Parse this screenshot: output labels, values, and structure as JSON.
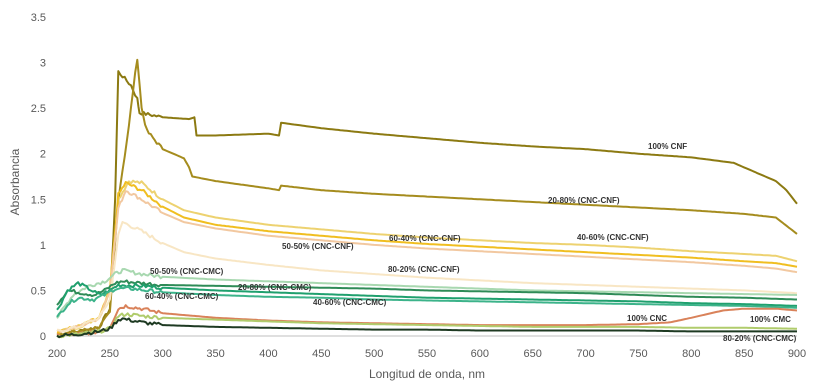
{
  "chart_data": {
    "type": "line",
    "xlabel": "Longitud de onda, nm",
    "ylabel": "Absorbancia",
    "xlim": [
      200,
      900
    ],
    "ylim": [
      0,
      3.5
    ],
    "x_ticks": [
      "200",
      "250",
      "300",
      "350",
      "400",
      "450",
      "500",
      "550",
      "600",
      "650",
      "700",
      "750",
      "800",
      "850",
      "900"
    ],
    "y_ticks": [
      "0",
      "0.5",
      "1",
      "1.5",
      "2",
      "2.5",
      "3",
      "3.5"
    ],
    "grid": false,
    "legend": "none",
    "series": [
      {
        "name": "100% CNF",
        "color": "#8c7a12",
        "points": [
          [
            200,
            0.02
          ],
          [
            220,
            0.05
          ],
          [
            240,
            0.1
          ],
          [
            250,
            0.3
          ],
          [
            255,
            1.5
          ],
          [
            258,
            2.9
          ],
          [
            270,
            2.75
          ],
          [
            276,
            2.6
          ],
          [
            278,
            2.45
          ],
          [
            300,
            2.4
          ],
          [
            325,
            2.38
          ],
          [
            330,
            2.4
          ],
          [
            332,
            2.2
          ],
          [
            350,
            2.2
          ],
          [
            400,
            2.22
          ],
          [
            410,
            2.2
          ],
          [
            412,
            2.34
          ],
          [
            450,
            2.28
          ],
          [
            500,
            2.22
          ],
          [
            550,
            2.17
          ],
          [
            600,
            2.12
          ],
          [
            650,
            2.08
          ],
          [
            700,
            2.05
          ],
          [
            750,
            2.0
          ],
          [
            800,
            1.96
          ],
          [
            840,
            1.9
          ],
          [
            860,
            1.8
          ],
          [
            880,
            1.7
          ],
          [
            890,
            1.6
          ],
          [
            900,
            1.45
          ]
        ]
      },
      {
        "name": "20-80% (CNC-CNF)",
        "color": "#a58c1e",
        "points": [
          [
            200,
            0.02
          ],
          [
            220,
            0.05
          ],
          [
            240,
            0.1
          ],
          [
            250,
            0.25
          ],
          [
            258,
            1.5
          ],
          [
            268,
            2.3
          ],
          [
            272,
            2.7
          ],
          [
            276,
            3.05
          ],
          [
            280,
            2.5
          ],
          [
            285,
            2.25
          ],
          [
            300,
            2.05
          ],
          [
            320,
            1.95
          ],
          [
            325,
            1.85
          ],
          [
            328,
            1.75
          ],
          [
            350,
            1.7
          ],
          [
            400,
            1.62
          ],
          [
            410,
            1.6
          ],
          [
            412,
            1.65
          ],
          [
            450,
            1.6
          ],
          [
            500,
            1.56
          ],
          [
            550,
            1.53
          ],
          [
            600,
            1.5
          ],
          [
            650,
            1.47
          ],
          [
            700,
            1.44
          ],
          [
            750,
            1.41
          ],
          [
            800,
            1.38
          ],
          [
            850,
            1.34
          ],
          [
            880,
            1.3
          ],
          [
            900,
            1.12
          ]
        ]
      },
      {
        "name": "40-60% (CNC-CNF)",
        "color": "#edd270",
        "points": [
          [
            200,
            0.05
          ],
          [
            220,
            0.1
          ],
          [
            240,
            0.2
          ],
          [
            250,
            0.5
          ],
          [
            258,
            1.5
          ],
          [
            268,
            1.7
          ],
          [
            280,
            1.68
          ],
          [
            300,
            1.5
          ],
          [
            320,
            1.38
          ],
          [
            350,
            1.3
          ],
          [
            400,
            1.22
          ],
          [
            450,
            1.17
          ],
          [
            500,
            1.12
          ],
          [
            550,
            1.08
          ],
          [
            600,
            1.05
          ],
          [
            650,
            1.02
          ],
          [
            700,
            1.0
          ],
          [
            750,
            0.97
          ],
          [
            800,
            0.93
          ],
          [
            850,
            0.9
          ],
          [
            880,
            0.88
          ],
          [
            900,
            0.82
          ]
        ]
      },
      {
        "name": "60-40% (CNC-CNF)",
        "color": "#f0be20",
        "points": [
          [
            200,
            0.05
          ],
          [
            220,
            0.1
          ],
          [
            240,
            0.2
          ],
          [
            250,
            0.5
          ],
          [
            258,
            1.55
          ],
          [
            265,
            1.68
          ],
          [
            280,
            1.6
          ],
          [
            300,
            1.42
          ],
          [
            320,
            1.3
          ],
          [
            350,
            1.22
          ],
          [
            400,
            1.15
          ],
          [
            450,
            1.1
          ],
          [
            500,
            1.05
          ],
          [
            550,
            1.01
          ],
          [
            600,
            0.98
          ],
          [
            650,
            0.95
          ],
          [
            700,
            0.92
          ],
          [
            750,
            0.89
          ],
          [
            800,
            0.86
          ],
          [
            850,
            0.82
          ],
          [
            880,
            0.8
          ],
          [
            900,
            0.76
          ]
        ]
      },
      {
        "name": "50-50% (CNC-CNF)",
        "color": "#f2c8a0",
        "points": [
          [
            200,
            0.05
          ],
          [
            220,
            0.1
          ],
          [
            240,
            0.2
          ],
          [
            250,
            0.5
          ],
          [
            258,
            1.4
          ],
          [
            265,
            1.6
          ],
          [
            280,
            1.5
          ],
          [
            300,
            1.35
          ],
          [
            320,
            1.25
          ],
          [
            350,
            1.18
          ],
          [
            400,
            1.1
          ],
          [
            450,
            1.05
          ],
          [
            500,
            1.0
          ],
          [
            550,
            0.96
          ],
          [
            600,
            0.93
          ],
          [
            650,
            0.9
          ],
          [
            700,
            0.87
          ],
          [
            750,
            0.84
          ],
          [
            800,
            0.81
          ],
          [
            850,
            0.77
          ],
          [
            880,
            0.74
          ],
          [
            900,
            0.7
          ]
        ]
      },
      {
        "name": "80-20% (CNC-CNF)",
        "color": "#f8e6c4",
        "points": [
          [
            200,
            0.05
          ],
          [
            220,
            0.1
          ],
          [
            240,
            0.2
          ],
          [
            250,
            0.4
          ],
          [
            258,
            1.1
          ],
          [
            262,
            1.25
          ],
          [
            280,
            1.15
          ],
          [
            300,
            1.02
          ],
          [
            320,
            0.92
          ],
          [
            350,
            0.85
          ],
          [
            400,
            0.78
          ],
          [
            450,
            0.72
          ],
          [
            500,
            0.68
          ],
          [
            550,
            0.64
          ],
          [
            600,
            0.61
          ],
          [
            650,
            0.58
          ],
          [
            700,
            0.56
          ],
          [
            750,
            0.54
          ],
          [
            800,
            0.52
          ],
          [
            850,
            0.5
          ],
          [
            900,
            0.47
          ]
        ]
      },
      {
        "name": "50-50% (CNC-CMC)",
        "color": "#a8d8b0",
        "points": [
          [
            200,
            0.2
          ],
          [
            215,
            0.45
          ],
          [
            230,
            0.55
          ],
          [
            245,
            0.6
          ],
          [
            255,
            0.68
          ],
          [
            262,
            0.72
          ],
          [
            280,
            0.68
          ],
          [
            300,
            0.65
          ],
          [
            350,
            0.62
          ],
          [
            400,
            0.6
          ],
          [
            450,
            0.58
          ],
          [
            500,
            0.56
          ],
          [
            550,
            0.54
          ],
          [
            600,
            0.52
          ],
          [
            650,
            0.5
          ],
          [
            700,
            0.49
          ],
          [
            750,
            0.48
          ],
          [
            800,
            0.47
          ],
          [
            850,
            0.46
          ],
          [
            900,
            0.45
          ]
        ]
      },
      {
        "name": "20-80% (CNC-CMC)",
        "color": "#2e8b57",
        "points": [
          [
            200,
            0.35
          ],
          [
            210,
            0.5
          ],
          [
            220,
            0.48
          ],
          [
            235,
            0.45
          ],
          [
            245,
            0.5
          ],
          [
            255,
            0.58
          ],
          [
            262,
            0.6
          ],
          [
            280,
            0.58
          ],
          [
            300,
            0.56
          ],
          [
            350,
            0.55
          ],
          [
            400,
            0.54
          ],
          [
            450,
            0.53
          ],
          [
            500,
            0.52
          ],
          [
            550,
            0.5
          ],
          [
            600,
            0.49
          ],
          [
            650,
            0.48
          ],
          [
            700,
            0.47
          ],
          [
            750,
            0.45
          ],
          [
            800,
            0.43
          ],
          [
            850,
            0.42
          ],
          [
            900,
            0.4
          ]
        ]
      },
      {
        "name": "60-40% (CNC-CMC)",
        "color": "#1fa06e",
        "points": [
          [
            200,
            0.28
          ],
          [
            210,
            0.5
          ],
          [
            220,
            0.58
          ],
          [
            230,
            0.52
          ],
          [
            240,
            0.45
          ],
          [
            250,
            0.5
          ],
          [
            258,
            0.56
          ],
          [
            280,
            0.55
          ],
          [
            300,
            0.53
          ],
          [
            350,
            0.5
          ],
          [
            400,
            0.48
          ],
          [
            450,
            0.46
          ],
          [
            500,
            0.44
          ],
          [
            550,
            0.42
          ],
          [
            600,
            0.41
          ],
          [
            650,
            0.4
          ],
          [
            700,
            0.39
          ],
          [
            750,
            0.38
          ],
          [
            800,
            0.36
          ],
          [
            850,
            0.35
          ],
          [
            900,
            0.33
          ]
        ]
      },
      {
        "name": "40-60% (CNC-CMC)",
        "color": "#3cb38a",
        "points": [
          [
            200,
            0.2
          ],
          [
            210,
            0.35
          ],
          [
            220,
            0.42
          ],
          [
            235,
            0.4
          ],
          [
            245,
            0.45
          ],
          [
            255,
            0.52
          ],
          [
            270,
            0.52
          ],
          [
            300,
            0.48
          ],
          [
            350,
            0.45
          ],
          [
            400,
            0.43
          ],
          [
            450,
            0.42
          ],
          [
            500,
            0.4
          ],
          [
            550,
            0.39
          ],
          [
            600,
            0.38
          ],
          [
            650,
            0.37
          ],
          [
            700,
            0.36
          ],
          [
            750,
            0.35
          ],
          [
            800,
            0.34
          ],
          [
            850,
            0.33
          ],
          [
            900,
            0.31
          ]
        ]
      },
      {
        "name": "100% CNC",
        "color": "#d9825a",
        "points": [
          [
            200,
            0.0
          ],
          [
            220,
            0.02
          ],
          [
            240,
            0.05
          ],
          [
            250,
            0.1
          ],
          [
            258,
            0.3
          ],
          [
            265,
            0.33
          ],
          [
            280,
            0.3
          ],
          [
            300,
            0.25
          ],
          [
            350,
            0.2
          ],
          [
            400,
            0.17
          ],
          [
            450,
            0.15
          ],
          [
            500,
            0.14
          ],
          [
            550,
            0.13
          ],
          [
            600,
            0.12
          ],
          [
            650,
            0.12
          ],
          [
            700,
            0.12
          ],
          [
            750,
            0.13
          ],
          [
            780,
            0.15
          ],
          [
            800,
            0.2
          ],
          [
            830,
            0.28
          ],
          [
            850,
            0.3
          ],
          [
            880,
            0.3
          ],
          [
            900,
            0.28
          ]
        ]
      },
      {
        "name": "100% CMC",
        "color": "#b0cc6c",
        "points": [
          [
            200,
            0.0
          ],
          [
            220,
            0.02
          ],
          [
            240,
            0.05
          ],
          [
            250,
            0.08
          ],
          [
            258,
            0.22
          ],
          [
            265,
            0.24
          ],
          [
            280,
            0.22
          ],
          [
            300,
            0.2
          ],
          [
            350,
            0.18
          ],
          [
            400,
            0.16
          ],
          [
            450,
            0.14
          ],
          [
            500,
            0.13
          ],
          [
            550,
            0.12
          ],
          [
            600,
            0.11
          ],
          [
            650,
            0.1
          ],
          [
            700,
            0.1
          ],
          [
            750,
            0.1
          ],
          [
            800,
            0.09
          ],
          [
            850,
            0.09
          ],
          [
            900,
            0.08
          ]
        ]
      },
      {
        "name": "80-20% (CNC-CMC)",
        "color": "#1e3a22",
        "points": [
          [
            200,
            0.0
          ],
          [
            220,
            0.02
          ],
          [
            240,
            0.05
          ],
          [
            250,
            0.08
          ],
          [
            258,
            0.18
          ],
          [
            262,
            0.19
          ],
          [
            280,
            0.15
          ],
          [
            300,
            0.12
          ],
          [
            350,
            0.1
          ],
          [
            400,
            0.09
          ],
          [
            450,
            0.08
          ],
          [
            500,
            0.07
          ],
          [
            550,
            0.07
          ],
          [
            600,
            0.06
          ],
          [
            650,
            0.06
          ],
          [
            700,
            0.06
          ],
          [
            750,
            0.06
          ],
          [
            800,
            0.05
          ],
          [
            850,
            0.05
          ],
          [
            900,
            0.05
          ]
        ]
      }
    ]
  }
}
